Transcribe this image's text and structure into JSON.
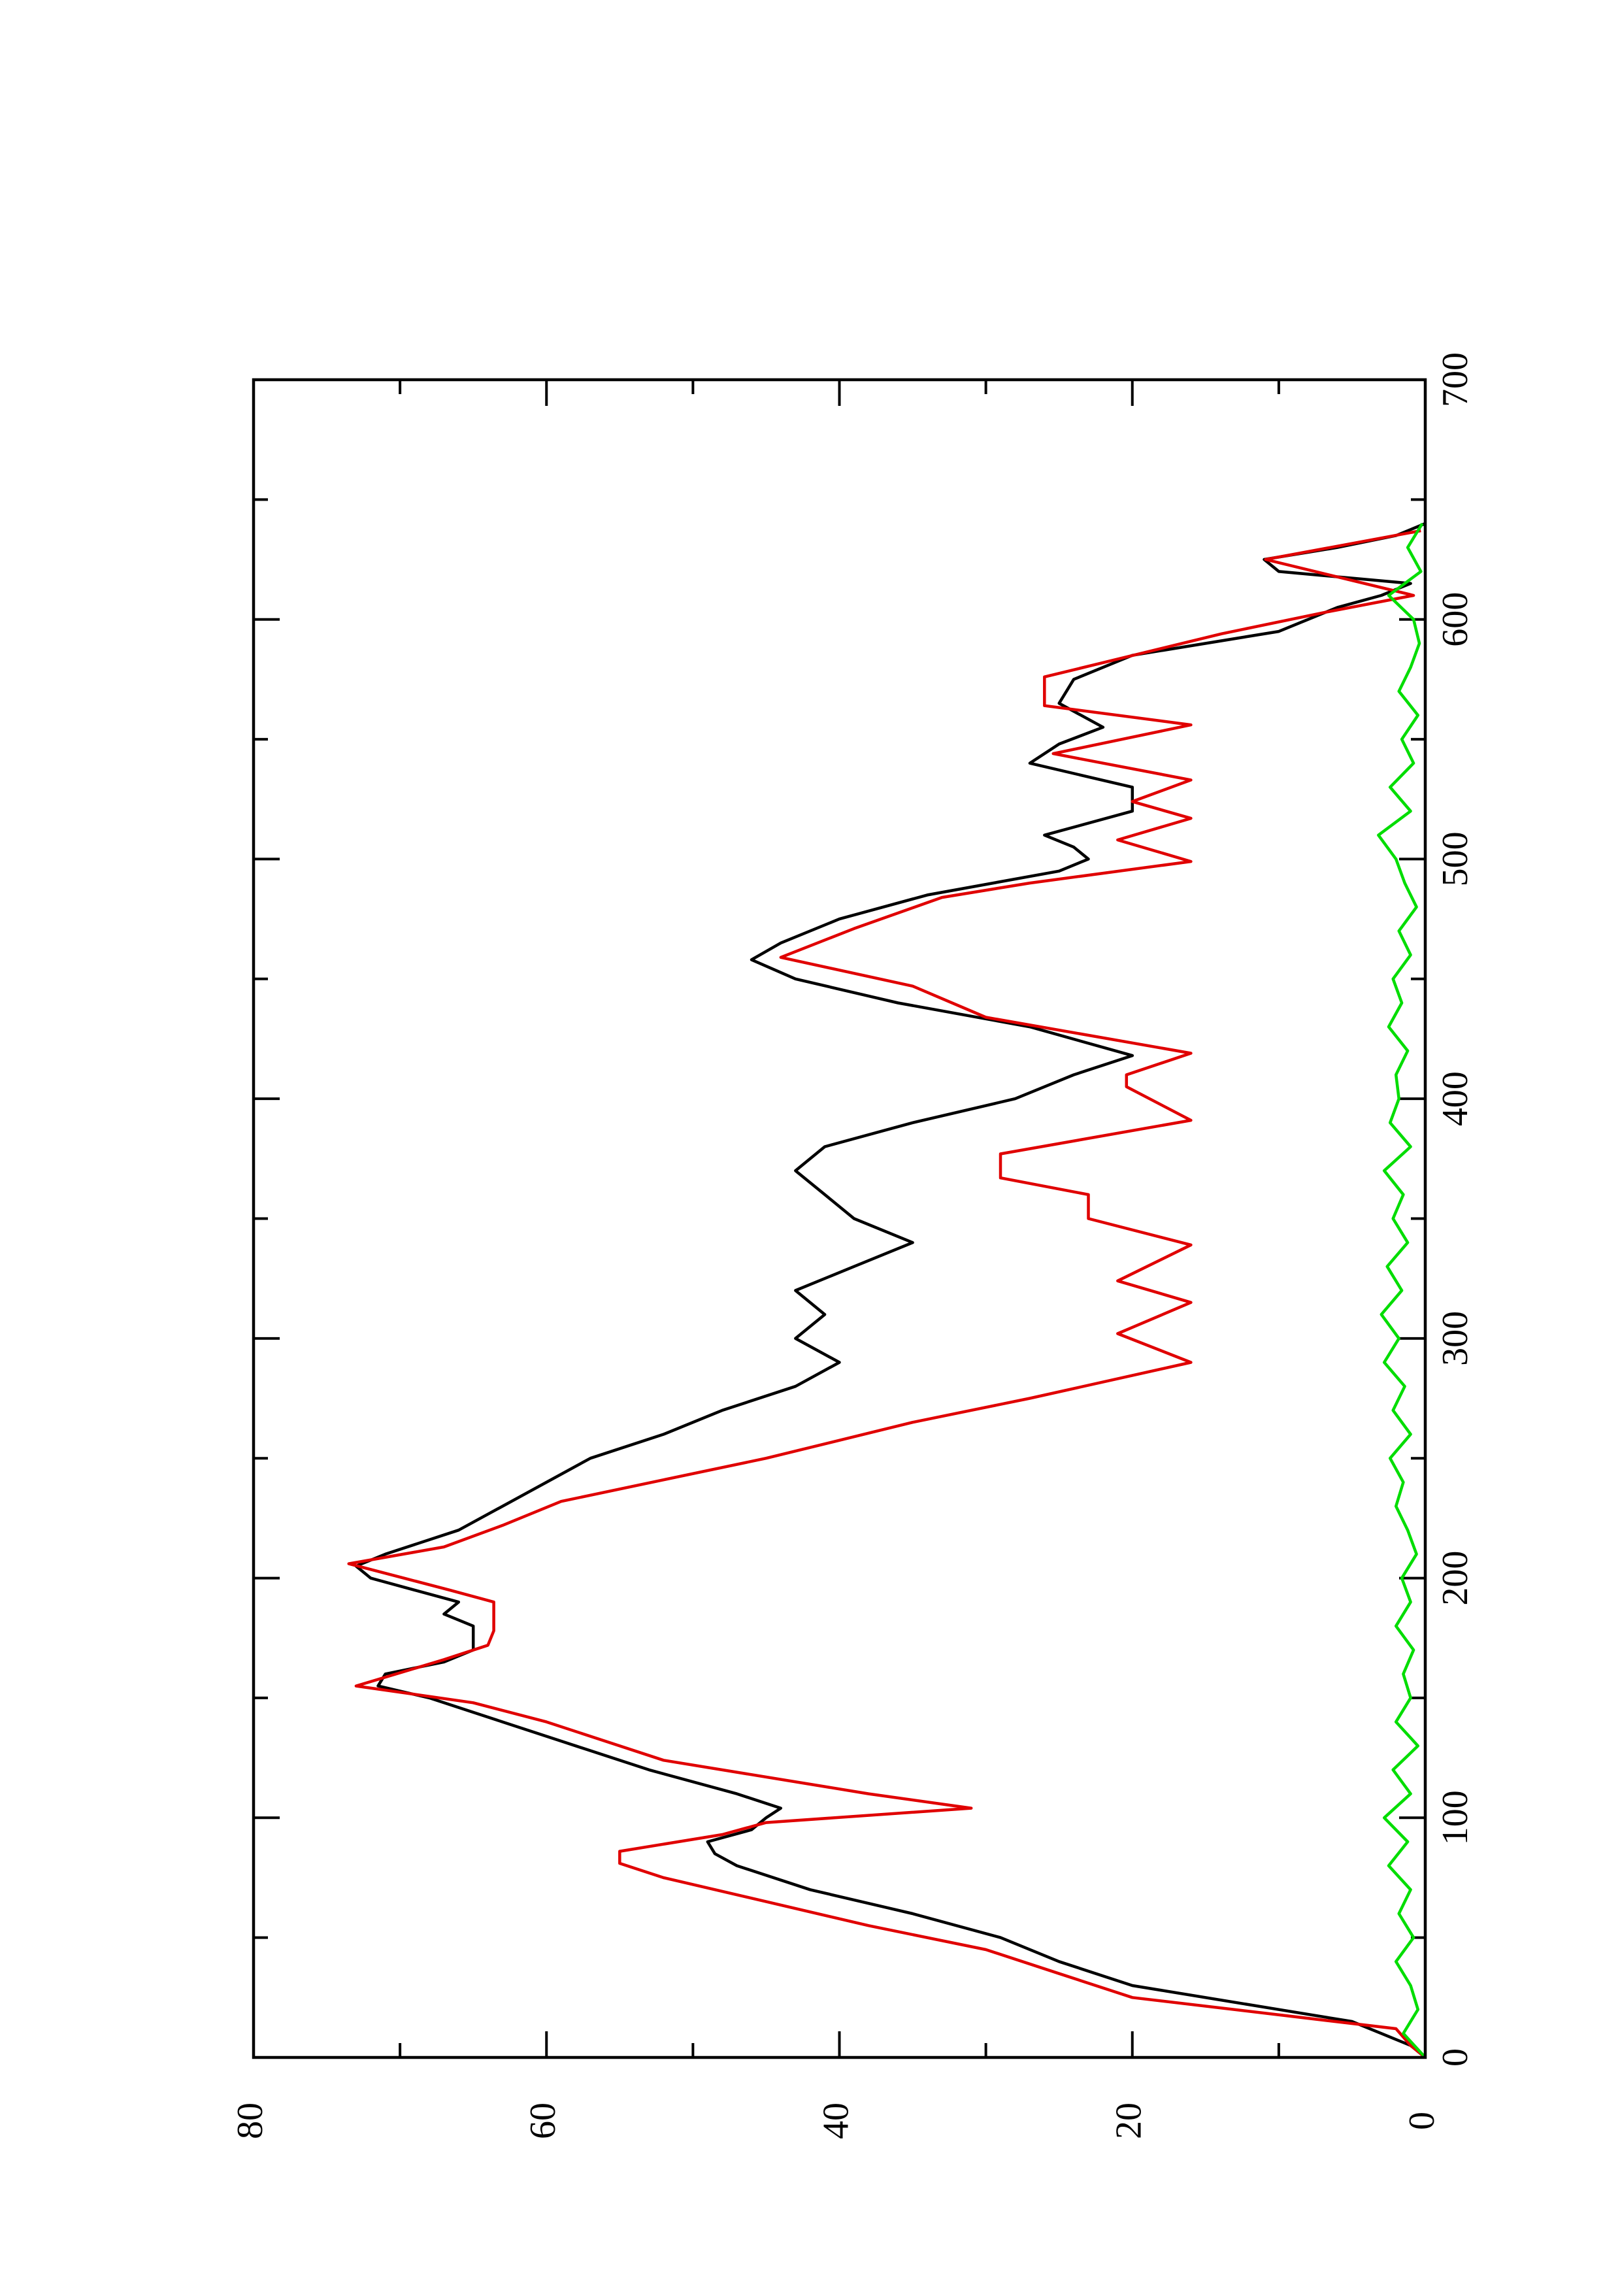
{
  "chart_data": {
    "type": "line",
    "rotated": true,
    "xlim": [
      0,
      700
    ],
    "xticks": [
      0,
      100,
      200,
      300,
      400,
      500,
      600,
      700
    ],
    "xminorticks": [
      50,
      150,
      250,
      350,
      450,
      550,
      650
    ],
    "ylim": [
      0,
      80
    ],
    "yticks": [
      0,
      20,
      40,
      60,
      80
    ],
    "yminorticks": [
      10,
      30,
      50,
      70
    ],
    "series": [
      {
        "color": "#000000",
        "x": [
          0,
          5,
          10,
          15,
          20,
          30,
          40,
          50,
          60,
          70,
          80,
          85,
          90,
          95,
          100,
          104,
          110,
          120,
          130,
          140,
          150,
          155,
          160,
          165,
          170,
          180,
          185,
          190,
          195,
          200,
          205,
          210,
          220,
          230,
          240,
          250,
          260,
          270,
          280,
          290,
          300,
          310,
          320,
          330,
          340,
          350,
          360,
          370,
          380,
          390,
          400,
          410,
          418,
          430,
          440,
          450,
          458,
          465,
          475,
          485,
          495,
          500,
          505,
          510,
          520,
          530,
          540,
          548,
          555,
          565,
          575,
          585,
          595,
          605,
          610,
          615,
          620,
          625,
          630,
          635,
          640
        ],
        "values": [
          0,
          1,
          3,
          5,
          10,
          20,
          25,
          29,
          35,
          42,
          47,
          48.5,
          49,
          46,
          45,
          44,
          47,
          53,
          58,
          63,
          68,
          71.5,
          71,
          67,
          65,
          65,
          67,
          66,
          69,
          72,
          73,
          71,
          66,
          63,
          60,
          57,
          52,
          48,
          43,
          40,
          43,
          41,
          43,
          39,
          35,
          39,
          41,
          43,
          41,
          35,
          28,
          24,
          20,
          27,
          36,
          43,
          46,
          44,
          40,
          34,
          25,
          23,
          24,
          26,
          20,
          20,
          27,
          25,
          22,
          25,
          24,
          20,
          10,
          6,
          3,
          1,
          10,
          11,
          6,
          2,
          0
        ]
      },
      {
        "color": "#e00000",
        "x": [
          0,
          5,
          12,
          25,
          35,
          45,
          55,
          65,
          75,
          81,
          86,
          93,
          98,
          104,
          110,
          124,
          140,
          148,
          155,
          166,
          172,
          178,
          190,
          195,
          206,
          213,
          222,
          232,
          241,
          250,
          265,
          275,
          290,
          302,
          315,
          324,
          339,
          350,
          360,
          367,
          377,
          391,
          405,
          410,
          419,
          434,
          447,
          459,
          471,
          484,
          490,
          499,
          508,
          517,
          524,
          533,
          544,
          556,
          564,
          576,
          594,
          603,
          610,
          625,
          637
        ],
        "values": [
          0,
          1,
          2,
          20,
          25,
          30,
          38,
          45,
          52,
          55,
          55,
          48,
          45,
          31,
          38,
          52,
          60,
          65,
          73,
          67,
          64,
          63.6,
          63.6,
          66.6,
          73.5,
          67,
          63,
          59,
          52,
          45,
          35,
          27,
          16,
          21,
          16,
          21,
          16,
          23,
          23,
          29,
          29,
          16,
          20.4,
          20.4,
          16,
          30,
          35,
          44,
          39,
          33,
          27,
          16,
          21,
          16,
          20,
          16,
          25.4,
          16,
          26,
          26,
          13.9,
          6.8,
          0.8,
          10.9,
          0.3
        ]
      },
      {
        "color": "#00dd00",
        "x": [
          0,
          10,
          20,
          30,
          40,
          50,
          60,
          70,
          80,
          90,
          100,
          110,
          120,
          130,
          140,
          150,
          160,
          170,
          180,
          190,
          200,
          210,
          220,
          230,
          240,
          250,
          260,
          270,
          280,
          290,
          300,
          310,
          320,
          330,
          340,
          350,
          360,
          370,
          380,
          390,
          400,
          410,
          420,
          430,
          440,
          450,
          460,
          470,
          480,
          490,
          500,
          510,
          520,
          530,
          540,
          550,
          560,
          570,
          580,
          590,
          600,
          610,
          620,
          630,
          640
        ],
        "values": [
          0,
          1.5,
          0.5,
          1,
          2,
          0.8,
          1.8,
          1,
          2.5,
          1.2,
          2.8,
          1,
          2.2,
          0.5,
          2,
          1,
          1.5,
          0.8,
          2,
          1,
          1.6,
          0.6,
          1.2,
          2,
          1.5,
          2.4,
          1,
          2.2,
          1.4,
          2.8,
          1.8,
          3,
          1.6,
          2.6,
          1.2,
          2.2,
          1.5,
          2.8,
          1,
          2.4,
          1.8,
          2,
          1.2,
          2.5,
          1.6,
          2.2,
          1,
          1.8,
          0.6,
          1.4,
          2,
          3.2,
          1,
          2.4,
          0.8,
          1.6,
          0.5,
          1.8,
          1,
          0.4,
          0.8,
          2.5,
          0.3,
          1.2,
          0.2
        ]
      }
    ]
  }
}
